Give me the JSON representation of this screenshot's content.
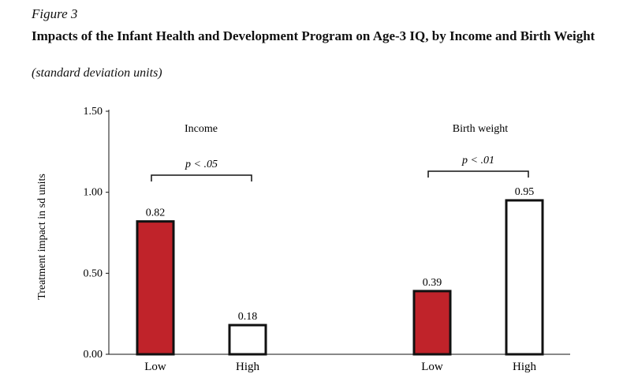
{
  "figure": {
    "label": "Figure 3",
    "title": "Impacts of the Infant Health and Development Program on Age-3 IQ, by Income and Birth Weight",
    "subtitle": "(standard deviation units)"
  },
  "chart_data": {
    "type": "bar",
    "ylabel": "Treatment impact in sd units",
    "ylim": [
      0,
      1.5
    ],
    "yticks": [
      "0.00",
      "0.50",
      "1.00",
      "1.50"
    ],
    "ytick_values": [
      0,
      0.5,
      1.0,
      1.5
    ],
    "colors": {
      "low": "#C0232A",
      "high": "#ffffff",
      "outline": "#111111"
    },
    "groups": [
      {
        "name": "Income",
        "significance": "p < .05",
        "bars": [
          {
            "category": "Low",
            "value": 0.82,
            "label": "0.82",
            "fill": "low"
          },
          {
            "category": "High",
            "value": 0.18,
            "label": "0.18",
            "fill": "high"
          }
        ]
      },
      {
        "name": "Birth weight",
        "significance": "p < .01",
        "bars": [
          {
            "category": "Low",
            "value": 0.39,
            "label": "0.39",
            "fill": "low"
          },
          {
            "category": "High",
            "value": 0.95,
            "label": "0.95",
            "fill": "high"
          }
        ]
      }
    ]
  }
}
